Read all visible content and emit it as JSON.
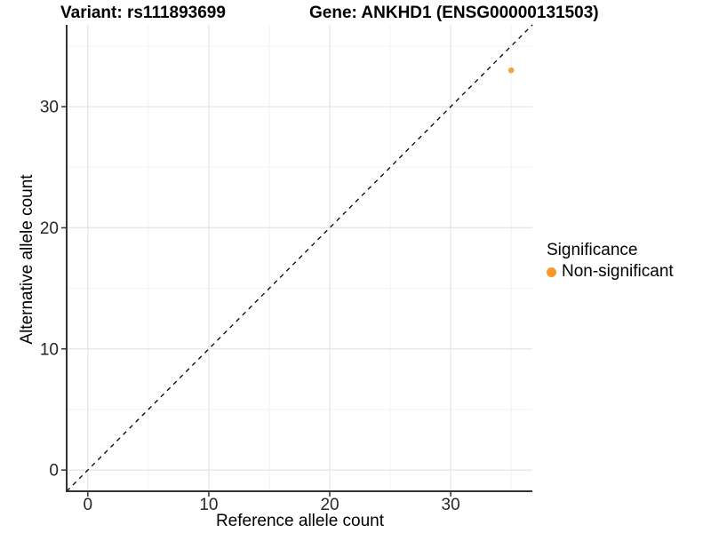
{
  "chart_data": {
    "type": "scatter",
    "title_variant": "Variant: rs111893699",
    "title_gene": "Gene: ANKHD1 (ENSG00000131503)",
    "xlabel": "Reference allele count",
    "ylabel": "Alternative allele count",
    "xlim": [
      -1.75,
      36.75
    ],
    "ylim": [
      -1.75,
      36.75
    ],
    "x_ticks": [
      0,
      10,
      20,
      30
    ],
    "y_ticks": [
      0,
      10,
      20,
      30
    ],
    "x_minor_ticks": [
      5,
      15,
      25,
      35
    ],
    "y_minor_ticks": [
      5,
      15,
      25,
      35
    ],
    "grid": "on",
    "points": [
      {
        "x": 35,
        "y": 33,
        "series": "Non-significant"
      }
    ],
    "reference_line": {
      "type": "identity",
      "equation": "y = x",
      "style": "dashed",
      "color": "#000000"
    },
    "legend": {
      "title": "Significance",
      "position": "right",
      "items": [
        {
          "label": "Non-significant",
          "color": "#F9992B"
        }
      ]
    },
    "colors": {
      "point": "#F9A243",
      "grid_major": "#E4E4E4",
      "grid_minor": "#F2F2F2",
      "axis_line": "#333333",
      "tick_text": "#262626"
    }
  }
}
